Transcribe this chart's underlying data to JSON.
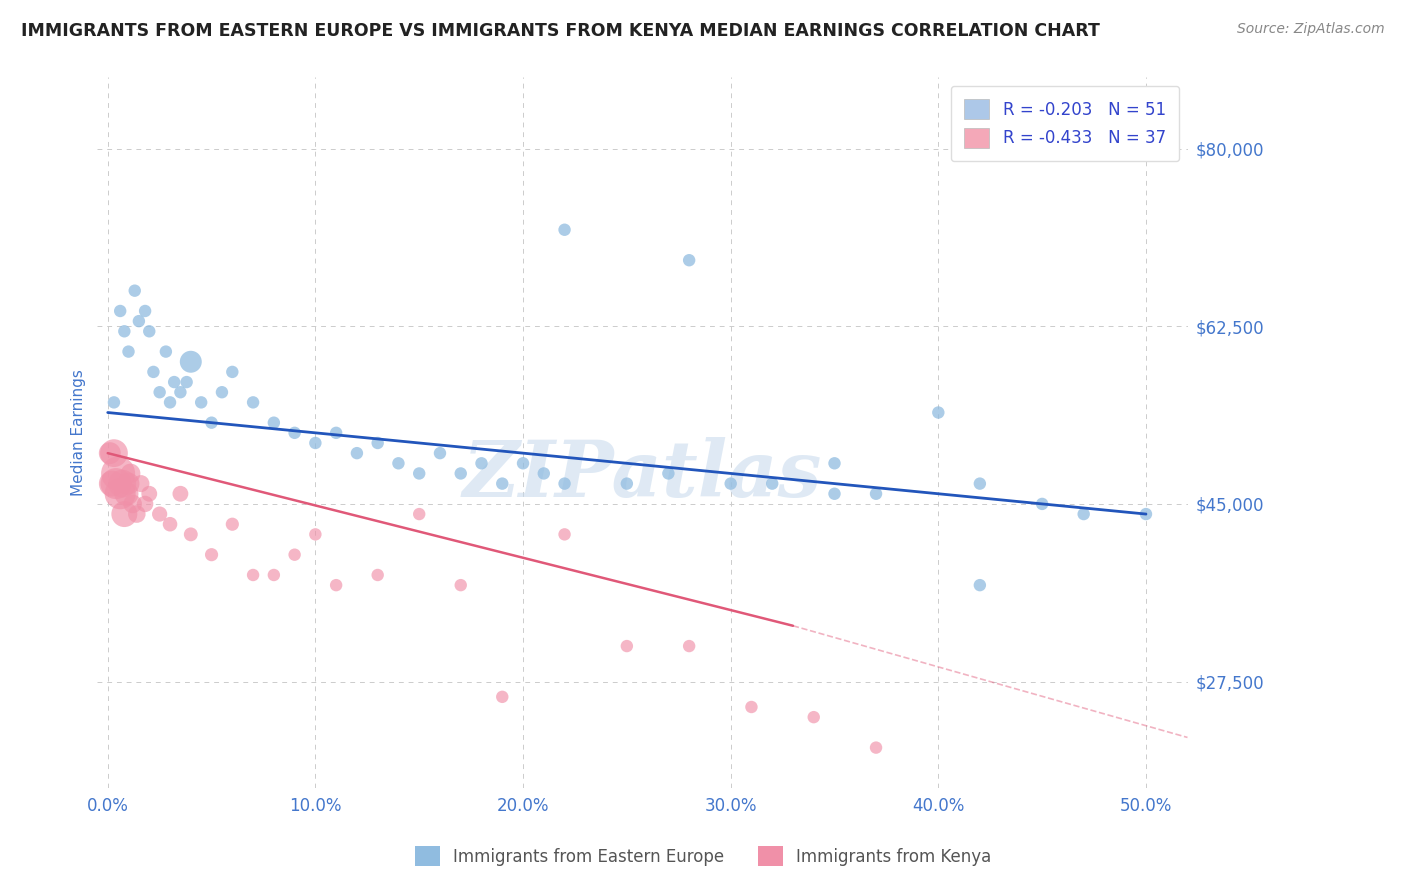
{
  "title": "IMMIGRANTS FROM EASTERN EUROPE VS IMMIGRANTS FROM KENYA MEDIAN EARNINGS CORRELATION CHART",
  "source_text": "Source: ZipAtlas.com",
  "ylabel": "Median Earnings",
  "xlabel_ticks": [
    "0.0%",
    "10.0%",
    "20.0%",
    "30.0%",
    "40.0%",
    "50.0%"
  ],
  "xlabel_vals": [
    0.0,
    10.0,
    20.0,
    30.0,
    40.0,
    50.0
  ],
  "yticks": [
    27500,
    45000,
    62500,
    80000
  ],
  "ytick_labels": [
    "$27,500",
    "$45,000",
    "$62,500",
    "$80,000"
  ],
  "ylim": [
    17000,
    87000
  ],
  "xlim": [
    -0.5,
    52.0
  ],
  "watermark": "ZIPatlas",
  "legend_entries": [
    {
      "label": "R = -0.203   N = 51",
      "color": "#adc8e8"
    },
    {
      "label": "R = -0.433   N = 37",
      "color": "#f4a8b8"
    }
  ],
  "series_eastern_europe": {
    "color": "#90bce0",
    "line_color": "#2255bb",
    "R": -0.203,
    "N": 51,
    "x": [
      0.3,
      0.6,
      0.8,
      1.0,
      1.3,
      1.5,
      1.8,
      2.0,
      2.2,
      2.5,
      2.8,
      3.0,
      3.2,
      3.5,
      3.8,
      4.0,
      4.5,
      5.0,
      5.5,
      6.0,
      7.0,
      8.0,
      9.0,
      10.0,
      11.0,
      12.0,
      13.0,
      14.0,
      15.0,
      16.0,
      17.0,
      18.0,
      19.0,
      20.0,
      21.0,
      22.0,
      25.0,
      27.0,
      30.0,
      32.0,
      35.0,
      37.0,
      40.0,
      42.0,
      45.0,
      47.0,
      50.0,
      22.0,
      28.0,
      35.0,
      42.0
    ],
    "y": [
      55000,
      64000,
      62000,
      60000,
      66000,
      63000,
      64000,
      62000,
      58000,
      56000,
      60000,
      55000,
      57000,
      56000,
      57000,
      59000,
      55000,
      53000,
      56000,
      58000,
      55000,
      53000,
      52000,
      51000,
      52000,
      50000,
      51000,
      49000,
      48000,
      50000,
      48000,
      49000,
      47000,
      49000,
      48000,
      47000,
      47000,
      48000,
      47000,
      47000,
      46000,
      46000,
      54000,
      47000,
      45000,
      44000,
      44000,
      72000,
      69000,
      49000,
      37000
    ],
    "sizes": [
      80,
      80,
      80,
      80,
      80,
      80,
      80,
      80,
      80,
      80,
      80,
      80,
      80,
      80,
      80,
      250,
      80,
      80,
      80,
      80,
      80,
      80,
      80,
      80,
      80,
      80,
      80,
      80,
      80,
      80,
      80,
      80,
      80,
      80,
      80,
      80,
      80,
      80,
      80,
      80,
      80,
      80,
      80,
      80,
      80,
      80,
      80,
      80,
      80,
      80,
      80
    ]
  },
  "series_kenya": {
    "color": "#f090a8",
    "line_color": "#e05878",
    "R": -0.433,
    "N": 37,
    "x": [
      0.1,
      0.2,
      0.3,
      0.4,
      0.5,
      0.6,
      0.7,
      0.8,
      0.9,
      1.0,
      1.1,
      1.2,
      1.4,
      1.6,
      1.8,
      2.0,
      2.5,
      3.0,
      3.5,
      4.0,
      5.0,
      6.0,
      7.0,
      8.0,
      9.0,
      10.0,
      11.0,
      13.0,
      15.0,
      17.0,
      19.0,
      22.0,
      25.0,
      28.0,
      31.0,
      34.0,
      37.0
    ],
    "y": [
      50000,
      47000,
      50000,
      47000,
      48000,
      46000,
      47000,
      44000,
      46000,
      47000,
      48000,
      45000,
      44000,
      47000,
      45000,
      46000,
      44000,
      43000,
      46000,
      42000,
      40000,
      43000,
      38000,
      38000,
      40000,
      42000,
      37000,
      38000,
      44000,
      37000,
      26000,
      42000,
      31000,
      31000,
      25000,
      24000,
      21000
    ],
    "sizes": [
      250,
      350,
      400,
      500,
      600,
      500,
      400,
      350,
      300,
      250,
      200,
      180,
      160,
      150,
      140,
      130,
      120,
      110,
      130,
      100,
      90,
      90,
      80,
      80,
      80,
      80,
      80,
      80,
      80,
      80,
      80,
      80,
      80,
      80,
      80,
      80,
      80
    ]
  },
  "background_color": "#ffffff",
  "grid_color": "#cccccc",
  "title_color": "#222222",
  "axis_label_color": "#4477cc",
  "tick_label_color": "#4477cc"
}
